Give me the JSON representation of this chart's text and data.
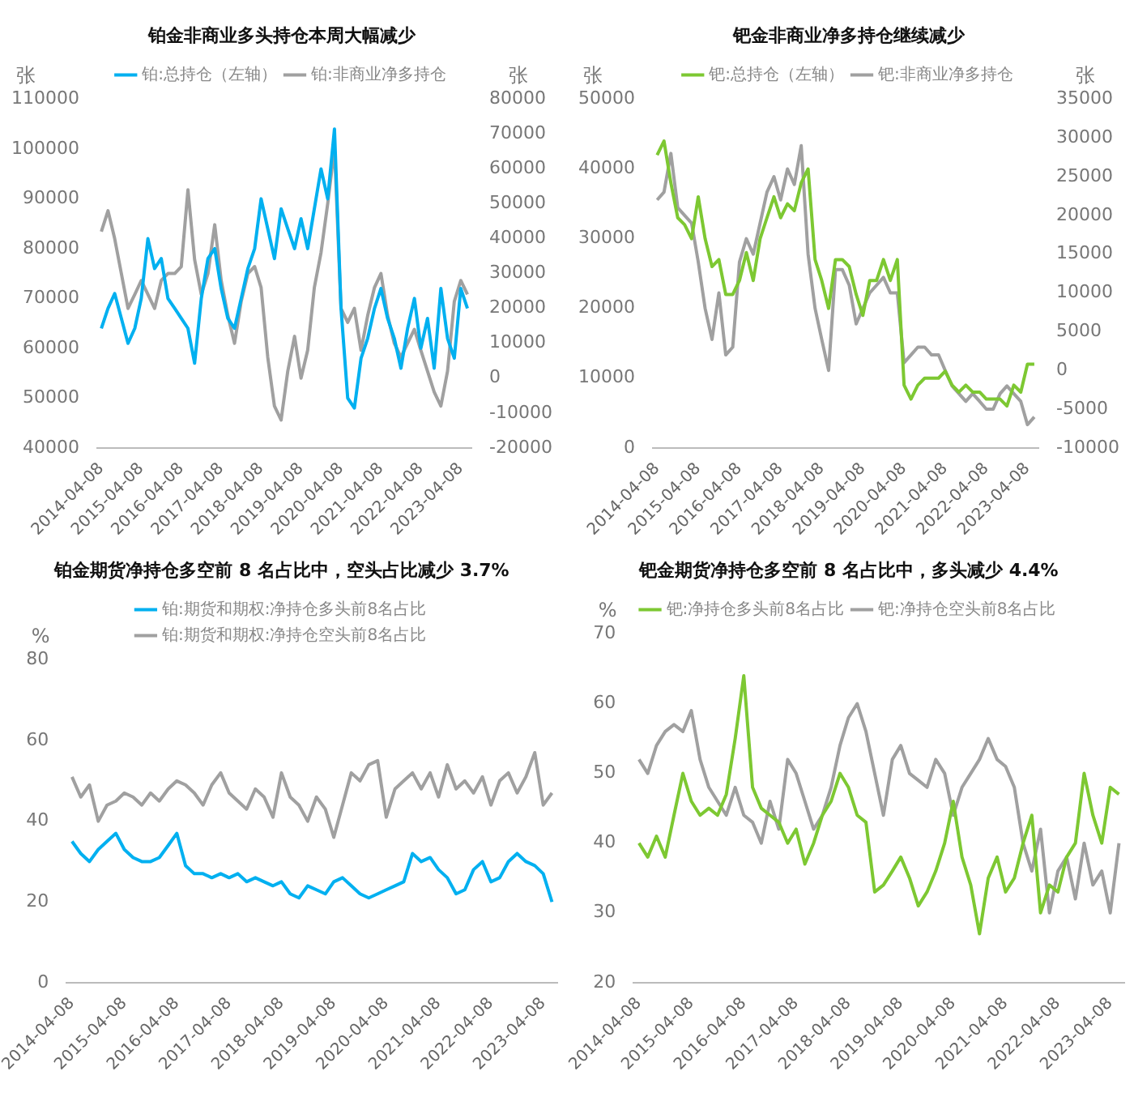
{
  "chart_data": [
    {
      "type": "line",
      "title": "铂金非商业多头持仓本周大幅减少",
      "ylabel": "张",
      "y2label": "张",
      "legend": "top",
      "marker": "none",
      "grid": false,
      "x": [
        "2014-04-08",
        "2014-06-08",
        "2014-08-08",
        "2014-10-08",
        "2014-12-08",
        "2015-02-08",
        "2015-04-08",
        "2015-06-08",
        "2015-08-08",
        "2015-10-08",
        "2015-12-08",
        "2016-02-08",
        "2016-04-08",
        "2016-06-08",
        "2016-08-08",
        "2016-10-08",
        "2016-12-08",
        "2017-02-08",
        "2017-04-08",
        "2017-06-08",
        "2017-08-08",
        "2017-10-08",
        "2017-12-08",
        "2018-02-08",
        "2018-04-08",
        "2018-06-08",
        "2018-08-08",
        "2018-10-08",
        "2018-12-08",
        "2019-02-08",
        "2019-04-08",
        "2019-06-08",
        "2019-08-08",
        "2019-10-08",
        "2019-12-08",
        "2020-02-08",
        "2020-04-08",
        "2020-06-08",
        "2020-08-08",
        "2020-10-08",
        "2020-12-08",
        "2021-02-08",
        "2021-04-08",
        "2021-06-08",
        "2021-08-08",
        "2021-10-08",
        "2021-12-08",
        "2022-02-08",
        "2022-04-08",
        "2022-06-08",
        "2022-08-08",
        "2022-10-08",
        "2022-12-08",
        "2023-02-08",
        "2023-04-08",
        "2023-06-08"
      ],
      "xlim": [
        "2014-03-01",
        "2023-07-15"
      ],
      "xticks": [
        "2014-04-08",
        "2015-04-08",
        "2016-04-08",
        "2017-04-08",
        "2018-04-08",
        "2019-04-08",
        "2020-04-08",
        "2021-04-08",
        "2022-04-08",
        "2023-04-08"
      ],
      "ylim": [
        40000,
        110000
      ],
      "yticks": [
        40000,
        50000,
        60000,
        70000,
        80000,
        90000,
        100000,
        110000
      ],
      "y2lim": [
        -20000,
        80000
      ],
      "y2ticks": [
        -20000,
        -10000,
        0,
        10000,
        20000,
        30000,
        40000,
        50000,
        60000,
        70000,
        80000
      ],
      "series": [
        {
          "name": "铂:总持仓（左轴）",
          "color": "#00b0f0",
          "values": [
            64000,
            68000,
            71000,
            66000,
            61000,
            64000,
            70000,
            82000,
            76000,
            78000,
            70000,
            68000,
            66000,
            64000,
            57000,
            70000,
            78000,
            80000,
            72000,
            66000,
            64000,
            70000,
            76000,
            80000,
            90000,
            84000,
            78000,
            88000,
            84000,
            80000,
            86000,
            80000,
            88000,
            96000,
            90000,
            104000,
            68000,
            50000,
            48000,
            58000,
            62000,
            68000,
            72000,
            66000,
            62000,
            56000,
            64000,
            70000,
            60000,
            66000,
            56000,
            72000,
            62000,
            58000,
            72000,
            68000
          ]
        },
        {
          "name": "铂:非商业净多持仓",
          "color": "#a0a0a0",
          "axis": "y2",
          "values": [
            42000,
            48000,
            40000,
            30000,
            20000,
            24000,
            28000,
            24000,
            20000,
            28000,
            30000,
            30000,
            32000,
            54000,
            34000,
            24000,
            30000,
            44000,
            28000,
            18000,
            10000,
            22000,
            30000,
            32000,
            26000,
            6000,
            -8000,
            -12000,
            2000,
            12000,
            0,
            8000,
            26000,
            36000,
            50000,
            66000,
            20000,
            16000,
            20000,
            8000,
            18000,
            26000,
            30000,
            18000,
            10000,
            6000,
            10000,
            14000,
            8000,
            2000,
            -4000,
            -8000,
            2000,
            22000,
            28000,
            24000
          ]
        }
      ]
    },
    {
      "type": "line",
      "title": "钯金非商业净多持仓继续减少",
      "ylabel": "张",
      "y2label": "张",
      "legend": "top",
      "marker": "none",
      "grid": false,
      "x": [
        "2014-04-08",
        "2014-06-08",
        "2014-08-08",
        "2014-10-08",
        "2014-12-08",
        "2015-02-08",
        "2015-04-08",
        "2015-06-08",
        "2015-08-08",
        "2015-10-08",
        "2015-12-08",
        "2016-02-08",
        "2016-04-08",
        "2016-06-08",
        "2016-08-08",
        "2016-10-08",
        "2016-12-08",
        "2017-02-08",
        "2017-04-08",
        "2017-06-08",
        "2017-08-08",
        "2017-10-08",
        "2017-12-08",
        "2018-02-08",
        "2018-04-08",
        "2018-06-08",
        "2018-08-08",
        "2018-10-08",
        "2018-12-08",
        "2019-02-08",
        "2019-04-08",
        "2019-06-08",
        "2019-08-08",
        "2019-10-08",
        "2019-12-08",
        "2020-02-08",
        "2020-04-08",
        "2020-06-08",
        "2020-08-08",
        "2020-10-08",
        "2020-12-08",
        "2021-02-08",
        "2021-04-08",
        "2021-06-08",
        "2021-08-08",
        "2021-10-08",
        "2021-12-08",
        "2022-02-08",
        "2022-04-08",
        "2022-06-08",
        "2022-08-08",
        "2022-10-08",
        "2022-12-08",
        "2023-02-08",
        "2023-04-08",
        "2023-06-08"
      ],
      "xlim": [
        "2014-03-01",
        "2023-07-15"
      ],
      "xticks": [
        "2014-04-08",
        "2015-04-08",
        "2016-04-08",
        "2017-04-08",
        "2018-04-08",
        "2019-04-08",
        "2020-04-08",
        "2021-04-08",
        "2022-04-08",
        "2023-04-08"
      ],
      "ylim": [
        0,
        50000
      ],
      "yticks": [
        0,
        10000,
        20000,
        30000,
        40000,
        50000
      ],
      "y2lim": [
        -10000,
        35000
      ],
      "y2ticks": [
        -10000,
        -5000,
        0,
        5000,
        10000,
        15000,
        20000,
        25000,
        30000,
        35000
      ],
      "series": [
        {
          "name": "钯:总持仓（左轴）",
          "color": "#7dc832",
          "values": [
            42000,
            44000,
            38000,
            33000,
            32000,
            30000,
            36000,
            30000,
            26000,
            27000,
            22000,
            22000,
            24000,
            28000,
            24000,
            30000,
            33000,
            36000,
            33000,
            35000,
            34000,
            38000,
            40000,
            27000,
            24000,
            20000,
            27000,
            27000,
            26000,
            22000,
            19000,
            24000,
            24000,
            27000,
            24000,
            27000,
            9000,
            7000,
            9000,
            10000,
            10000,
            10000,
            11000,
            9000,
            8000,
            9000,
            8000,
            8000,
            7000,
            7000,
            7000,
            6000,
            9000,
            8000,
            12000,
            12000
          ]
        },
        {
          "name": "钯:非商业净多持仓",
          "color": "#a0a0a0",
          "axis": "y2",
          "values": [
            22000,
            23000,
            28000,
            21000,
            20000,
            19000,
            14000,
            8000,
            4000,
            10000,
            2000,
            3000,
            14000,
            17000,
            15000,
            19000,
            23000,
            25000,
            22000,
            26000,
            24000,
            29000,
            15000,
            8000,
            4000,
            0,
            13000,
            13000,
            11000,
            6000,
            8000,
            10000,
            11000,
            12000,
            10000,
            10000,
            1000,
            2000,
            3000,
            3000,
            2000,
            2000,
            0,
            -2000,
            -3000,
            -4000,
            -3000,
            -4000,
            -5000,
            -5000,
            -3000,
            -2000,
            -3000,
            -4000,
            -7000,
            -6000
          ]
        }
      ]
    },
    {
      "type": "line",
      "title": "铂金期货净持仓多空前 8 名占比中，空头占比减少 3.7%",
      "ylabel": "%",
      "legend": "top",
      "marker": "none",
      "grid": false,
      "x": [
        "2014-04-08",
        "2014-06-08",
        "2014-08-08",
        "2014-10-08",
        "2014-12-08",
        "2015-02-08",
        "2015-04-08",
        "2015-06-08",
        "2015-08-08",
        "2015-10-08",
        "2015-12-08",
        "2016-02-08",
        "2016-04-08",
        "2016-06-08",
        "2016-08-08",
        "2016-10-08",
        "2016-12-08",
        "2017-02-08",
        "2017-04-08",
        "2017-06-08",
        "2017-08-08",
        "2017-10-08",
        "2017-12-08",
        "2018-02-08",
        "2018-04-08",
        "2018-06-08",
        "2018-08-08",
        "2018-10-08",
        "2018-12-08",
        "2019-02-08",
        "2019-04-08",
        "2019-06-08",
        "2019-08-08",
        "2019-10-08",
        "2019-12-08",
        "2020-02-08",
        "2020-04-08",
        "2020-06-08",
        "2020-08-08",
        "2020-10-08",
        "2020-12-08",
        "2021-02-08",
        "2021-04-08",
        "2021-06-08",
        "2021-08-08",
        "2021-10-08",
        "2021-12-08",
        "2022-02-08",
        "2022-04-08",
        "2022-06-08",
        "2022-08-08",
        "2022-10-08",
        "2022-12-08",
        "2023-02-08",
        "2023-04-08",
        "2023-06-08"
      ],
      "xlim": [
        "2014-03-01",
        "2023-07-15"
      ],
      "xticks": [
        "2014-04-08",
        "2015-04-08",
        "2016-04-08",
        "2017-04-08",
        "2018-04-08",
        "2019-04-08",
        "2020-04-08",
        "2021-04-08",
        "2022-04-08",
        "2023-04-08"
      ],
      "ylim": [
        0,
        80
      ],
      "yticks": [
        0,
        20,
        40,
        60,
        80
      ],
      "series": [
        {
          "name": "铂:期货和期权:净持仓多头前8名占比",
          "color": "#00b0f0",
          "values": [
            35,
            32,
            30,
            33,
            35,
            37,
            33,
            31,
            30,
            30,
            31,
            34,
            37,
            29,
            27,
            27,
            26,
            27,
            26,
            27,
            25,
            26,
            25,
            24,
            25,
            22,
            21,
            24,
            23,
            22,
            25,
            26,
            24,
            22,
            21,
            22,
            23,
            24,
            25,
            32,
            30,
            31,
            28,
            26,
            22,
            23,
            28,
            30,
            25,
            26,
            30,
            32,
            30,
            29,
            27,
            20
          ]
        },
        {
          "name": "铂:期货和期权:净持仓空头前8名占比",
          "color": "#a0a0a0",
          "values": [
            51,
            46,
            49,
            40,
            44,
            45,
            47,
            46,
            44,
            47,
            45,
            48,
            50,
            49,
            47,
            44,
            49,
            52,
            47,
            45,
            43,
            48,
            46,
            41,
            52,
            46,
            44,
            40,
            46,
            43,
            36,
            44,
            52,
            50,
            54,
            55,
            41,
            48,
            50,
            52,
            48,
            52,
            46,
            54,
            48,
            50,
            47,
            51,
            44,
            50,
            52,
            47,
            51,
            57,
            44,
            47
          ]
        }
      ]
    },
    {
      "type": "line",
      "title": "钯金期货净持仓多空前 8 名占比中，多头减少 4.4%",
      "ylabel": "%",
      "legend": "top",
      "marker": "none",
      "grid": false,
      "x": [
        "2014-04-08",
        "2014-06-08",
        "2014-08-08",
        "2014-10-08",
        "2014-12-08",
        "2015-02-08",
        "2015-04-08",
        "2015-06-08",
        "2015-08-08",
        "2015-10-08",
        "2015-12-08",
        "2016-02-08",
        "2016-04-08",
        "2016-06-08",
        "2016-08-08",
        "2016-10-08",
        "2016-12-08",
        "2017-02-08",
        "2017-04-08",
        "2017-06-08",
        "2017-08-08",
        "2017-10-08",
        "2017-12-08",
        "2018-02-08",
        "2018-04-08",
        "2018-06-08",
        "2018-08-08",
        "2018-10-08",
        "2018-12-08",
        "2019-02-08",
        "2019-04-08",
        "2019-06-08",
        "2019-08-08",
        "2019-10-08",
        "2019-12-08",
        "2020-02-08",
        "2020-04-08",
        "2020-06-08",
        "2020-08-08",
        "2020-10-08",
        "2020-12-08",
        "2021-02-08",
        "2021-04-08",
        "2021-06-08",
        "2021-08-08",
        "2021-10-08",
        "2021-12-08",
        "2022-02-08",
        "2022-04-08",
        "2022-06-08",
        "2022-08-08",
        "2022-10-08",
        "2022-12-08",
        "2023-02-08",
        "2023-04-08",
        "2023-06-08"
      ],
      "xlim": [
        "2014-03-01",
        "2023-07-15"
      ],
      "xticks": [
        "2014-04-08",
        "2015-04-08",
        "2016-04-08",
        "2017-04-08",
        "2018-04-08",
        "2019-04-08",
        "2020-04-08",
        "2021-04-08",
        "2022-04-08",
        "2023-04-08"
      ],
      "ylim": [
        20,
        70
      ],
      "yticks": [
        20,
        30,
        40,
        50,
        60,
        70
      ],
      "series": [
        {
          "name": "钯:净持仓多头前8名占比",
          "color": "#7dc832",
          "values": [
            40,
            38,
            41,
            38,
            44,
            50,
            46,
            44,
            45,
            44,
            47,
            55,
            64,
            48,
            45,
            44,
            43,
            40,
            42,
            37,
            40,
            44,
            46,
            50,
            48,
            44,
            43,
            33,
            34,
            36,
            38,
            35,
            31,
            33,
            36,
            40,
            46,
            38,
            34,
            27,
            35,
            38,
            33,
            35,
            40,
            44,
            30,
            34,
            33,
            38,
            40,
            50,
            44,
            40,
            48,
            47
          ]
        },
        {
          "name": "钯:净持仓空头前8名占比",
          "color": "#a0a0a0",
          "values": [
            52,
            50,
            54,
            56,
            57,
            56,
            59,
            52,
            48,
            46,
            44,
            48,
            44,
            43,
            40,
            46,
            42,
            52,
            50,
            46,
            42,
            44,
            48,
            54,
            58,
            60,
            56,
            50,
            44,
            52,
            54,
            50,
            49,
            48,
            52,
            50,
            44,
            48,
            50,
            52,
            55,
            52,
            51,
            48,
            40,
            36,
            42,
            30,
            36,
            38,
            32,
            40,
            34,
            36,
            30,
            40
          ]
        }
      ]
    }
  ]
}
